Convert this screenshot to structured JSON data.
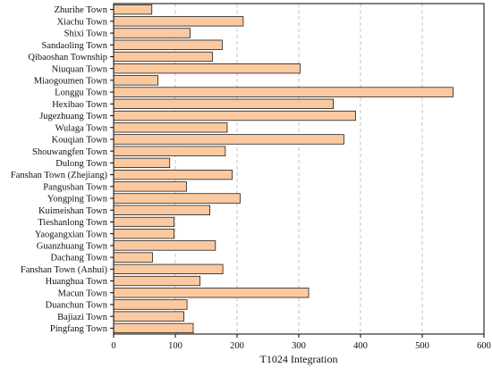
{
  "chart_data": {
    "type": "bar",
    "orientation": "horizontal",
    "title": "",
    "xlabel": "T1024 Integration",
    "ylabel": "",
    "xlim": [
      0,
      600
    ],
    "xticks": [
      0,
      100,
      200,
      300,
      400,
      500,
      600
    ],
    "grid": "vertical-dashed",
    "bar_color": "#fbc9a0",
    "bar_edge_color": "#000000",
    "categories": [
      "Zhurihe Town",
      "Xiachu Town",
      "Shixi Town",
      "Sandaoling Town",
      "Qibaoshan Township",
      "Niuquan Town",
      "Miaogoumen Town",
      "Longgu Town",
      "Hexibao Town",
      "Jugezhuang Town",
      "Wulaga Town",
      "Kouqian Town",
      "Shouwangfen Town",
      "Dulong Town",
      "Fanshan Town (Zhejiang)",
      "Pangushan Town",
      "Yongping Town",
      "Kuimeishan Town",
      "Tieshanlong Town",
      "Yaogangxian Town",
      "Guanzhuang Town",
      "Dachang Town",
      "Fanshan Town (Anhui)",
      "Huanghua Town",
      "Macun Town",
      "Duanchun Town",
      "Bajiazi Town",
      "Pingfang Town"
    ],
    "values": [
      62,
      210,
      124,
      176,
      160,
      302,
      72,
      550,
      356,
      392,
      184,
      373,
      181,
      91,
      192,
      118,
      205,
      156,
      98,
      98,
      165,
      63,
      177,
      140,
      316,
      119,
      114,
      129
    ]
  }
}
